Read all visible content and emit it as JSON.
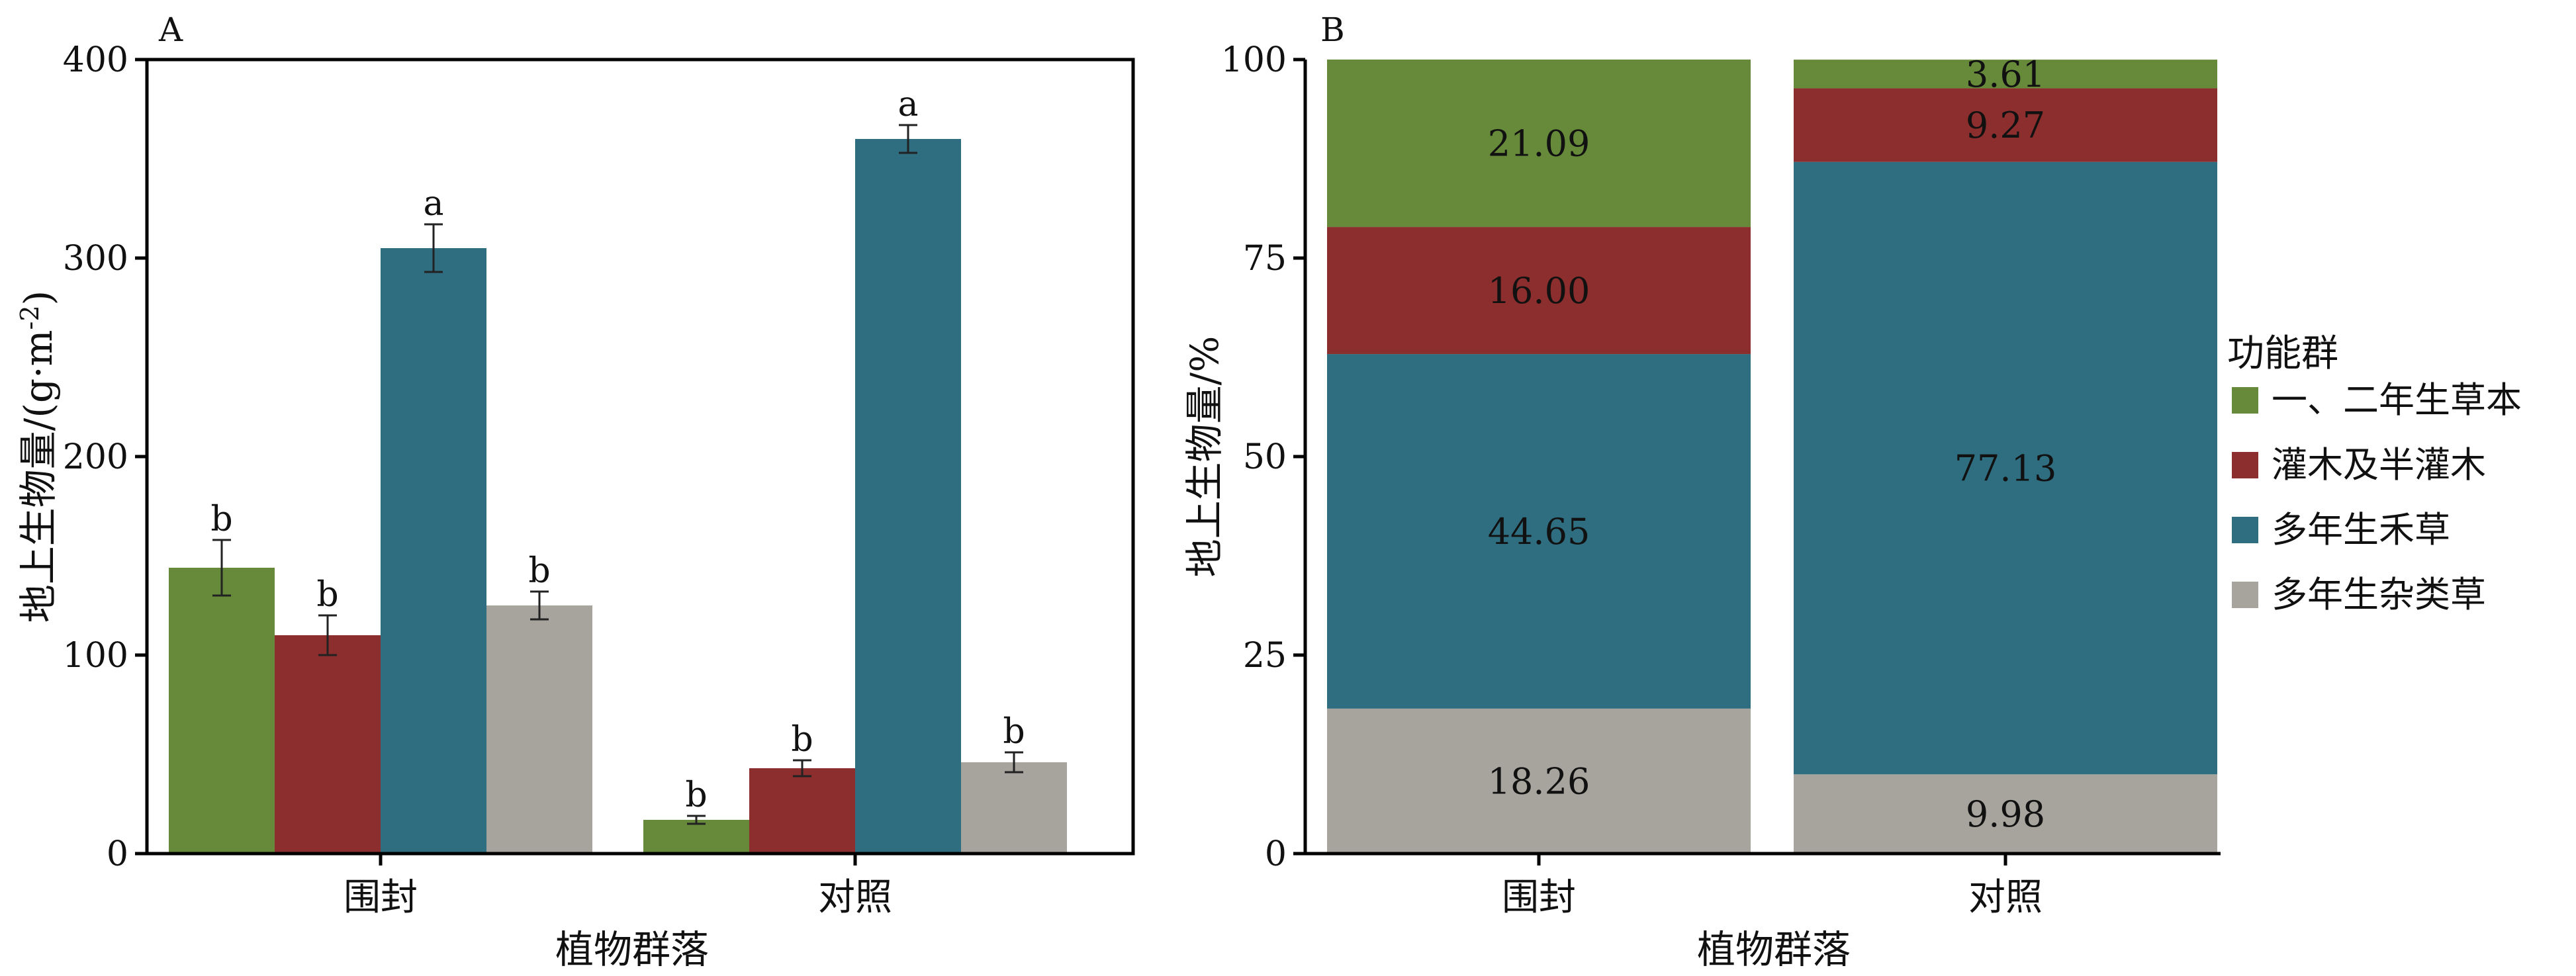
{
  "chart_data": [
    {
      "panel_label": "A",
      "type": "bar",
      "categories": [
        "围封",
        "对照"
      ],
      "xlabel": "植物群落",
      "ylabel": "地上生物量/(g·m",
      "ylabel_superscript": "-2",
      "ylabel_close": ")",
      "ylim": [
        0,
        400
      ],
      "yticks": [
        "0",
        "100",
        "200",
        "300",
        "400"
      ],
      "series": [
        {
          "name": "一、二年生草本",
          "color": "#668a39",
          "values": [
            144,
            17
          ],
          "errors": [
            14,
            2
          ],
          "letters": [
            "b",
            "b"
          ]
        },
        {
          "name": "灌木及半灌木",
          "color": "#8b2e2d",
          "values": [
            110,
            43
          ],
          "errors": [
            10,
            4
          ],
          "letters": [
            "b",
            "b"
          ]
        },
        {
          "name": "多年生禾草",
          "color": "#2e6e80",
          "values": [
            305,
            360
          ],
          "errors": [
            12,
            7
          ],
          "letters": [
            "a",
            "a"
          ]
        },
        {
          "name": "多年生杂类草",
          "color": "#a7a39d",
          "values": [
            125,
            46
          ],
          "errors": [
            7,
            5
          ],
          "letters": [
            "b",
            "b"
          ]
        }
      ]
    },
    {
      "panel_label": "B",
      "type": "bar",
      "stacked": true,
      "categories": [
        "围封",
        "对照"
      ],
      "xlabel": "植物群落",
      "ylabel": "地上生物量/%",
      "ylim": [
        0,
        100
      ],
      "yticks": [
        "0",
        "25",
        "50",
        "75",
        "100"
      ],
      "series": [
        {
          "name": "多年生杂类草",
          "color": "#a7a39d",
          "values": [
            18.26,
            9.98
          ],
          "labels": [
            "18.26",
            "9.98"
          ]
        },
        {
          "name": "多年生禾草",
          "color": "#2e6e80",
          "values": [
            44.65,
            77.13
          ],
          "labels": [
            "44.65",
            "77.13"
          ]
        },
        {
          "name": "灌木及半灌木",
          "color": "#8b2e2d",
          "values": [
            16.0,
            9.27
          ],
          "labels": [
            "16.00",
            "9.27"
          ]
        },
        {
          "name": "一、二年生草本",
          "color": "#668a39",
          "values": [
            21.09,
            3.61
          ],
          "labels": [
            "21.09",
            "3.61"
          ]
        }
      ],
      "legend": {
        "title": "功能群",
        "placement": "right",
        "items": [
          {
            "label": "一、二年生草本",
            "color": "#668a39"
          },
          {
            "label": "灌木及半灌木",
            "color": "#8b2e2d"
          },
          {
            "label": "多年生禾草",
            "color": "#2e6e80"
          },
          {
            "label": "多年生杂类草",
            "color": "#a7a39d"
          }
        ]
      }
    }
  ]
}
